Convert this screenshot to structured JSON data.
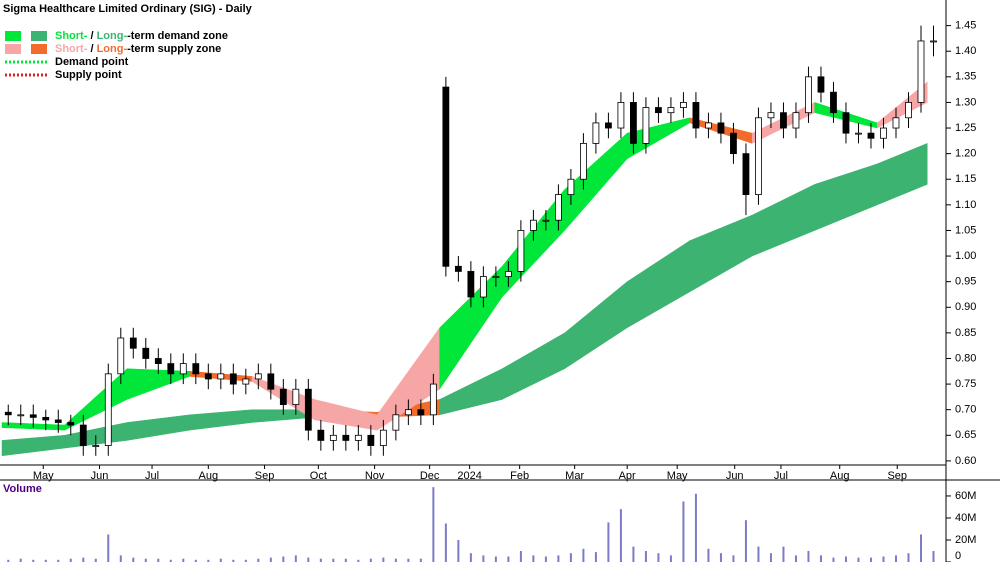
{
  "chart_data": {
    "type": "candlestick",
    "title": "Sigma Healthcare Limited Ordinary (SIG) - Daily",
    "legend": [
      {
        "parts": [
          "Short-",
          " / ",
          "Long-",
          "-term demand zone"
        ],
        "swatches": [
          "#00e639",
          "#3cb371"
        ]
      },
      {
        "parts": [
          "Short-",
          " / ",
          "Long-",
          "-term supply zone"
        ],
        "swatches": [
          "#f7a6a6",
          "#f26b2d"
        ]
      },
      {
        "text": "Demand point",
        "line": "#00e639"
      },
      {
        "text": "Supply point",
        "line": "#e02020"
      }
    ],
    "open": [
      0.695,
      0.69,
      0.69,
      0.685,
      0.68,
      0.675,
      0.67,
      0.63,
      0.63,
      0.77,
      0.84,
      0.82,
      0.8,
      0.79,
      0.77,
      0.79,
      0.77,
      0.76,
      0.77,
      0.75,
      0.76,
      0.77,
      0.74,
      0.71,
      0.74,
      0.66,
      0.64,
      0.65,
      0.64,
      0.65,
      0.63,
      0.66,
      0.69,
      0.7,
      0.69,
      1.33,
      0.98,
      0.97,
      0.92,
      0.96,
      0.96,
      0.97,
      1.05,
      1.07,
      1.07,
      1.12,
      1.15,
      1.22,
      1.26,
      1.25,
      1.3,
      1.22,
      1.29,
      1.28,
      1.29,
      1.3,
      1.25,
      1.26,
      1.24,
      1.2,
      1.12,
      1.27,
      1.28,
      1.25,
      1.28,
      1.35,
      1.32,
      1.28,
      1.24,
      1.24,
      1.23,
      1.25,
      1.27,
      1.3,
      1.42
    ],
    "high": [
      0.71,
      0.71,
      0.71,
      0.7,
      0.7,
      0.69,
      0.69,
      0.65,
      0.79,
      0.86,
      0.86,
      0.84,
      0.82,
      0.81,
      0.81,
      0.81,
      0.79,
      0.79,
      0.79,
      0.78,
      0.79,
      0.79,
      0.76,
      0.76,
      0.76,
      0.68,
      0.67,
      0.67,
      0.67,
      0.67,
      0.68,
      0.71,
      0.72,
      0.72,
      0.77,
      1.35,
      1.0,
      0.99,
      0.98,
      0.98,
      0.99,
      1.07,
      1.09,
      1.09,
      1.14,
      1.17,
      1.24,
      1.28,
      1.28,
      1.32,
      1.32,
      1.31,
      1.31,
      1.31,
      1.32,
      1.32,
      1.28,
      1.28,
      1.26,
      1.22,
      1.29,
      1.3,
      1.3,
      1.3,
      1.37,
      1.37,
      1.34,
      1.3,
      1.26,
      1.26,
      1.27,
      1.29,
      1.32,
      1.45,
      1.45
    ],
    "low": [
      0.67,
      0.67,
      0.665,
      0.66,
      0.655,
      0.65,
      0.61,
      0.61,
      0.61,
      0.75,
      0.8,
      0.78,
      0.77,
      0.75,
      0.75,
      0.75,
      0.74,
      0.74,
      0.73,
      0.73,
      0.74,
      0.72,
      0.69,
      0.69,
      0.64,
      0.62,
      0.62,
      0.62,
      0.62,
      0.61,
      0.61,
      0.64,
      0.67,
      0.67,
      0.67,
      0.96,
      0.95,
      0.9,
      0.9,
      0.94,
      0.94,
      0.95,
      1.03,
      1.05,
      1.05,
      1.1,
      1.13,
      1.2,
      1.23,
      1.23,
      1.2,
      1.2,
      1.26,
      1.26,
      1.27,
      1.23,
      1.23,
      1.22,
      1.18,
      1.08,
      1.1,
      1.25,
      1.23,
      1.23,
      1.26,
      1.3,
      1.26,
      1.22,
      1.22,
      1.21,
      1.21,
      1.23,
      1.25,
      1.28,
      1.39
    ],
    "close": [
      0.69,
      0.69,
      0.685,
      0.68,
      0.675,
      0.67,
      0.63,
      0.63,
      0.77,
      0.84,
      0.82,
      0.8,
      0.79,
      0.77,
      0.79,
      0.77,
      0.76,
      0.77,
      0.75,
      0.76,
      0.77,
      0.74,
      0.71,
      0.74,
      0.66,
      0.64,
      0.65,
      0.64,
      0.65,
      0.63,
      0.66,
      0.69,
      0.7,
      0.69,
      0.75,
      0.98,
      0.97,
      0.92,
      0.96,
      0.96,
      0.97,
      1.05,
      1.07,
      1.07,
      1.12,
      1.15,
      1.22,
      1.26,
      1.25,
      1.3,
      1.22,
      1.29,
      1.28,
      1.29,
      1.3,
      1.25,
      1.26,
      1.24,
      1.2,
      1.12,
      1.27,
      1.28,
      1.25,
      1.28,
      1.35,
      1.32,
      1.28,
      1.24,
      1.24,
      1.23,
      1.25,
      1.27,
      1.3,
      1.42,
      1.42
    ],
    "long_term_zone": {
      "x": [
        0,
        5,
        10,
        15,
        20,
        25,
        30,
        35,
        40,
        45,
        50,
        55,
        60,
        65,
        70,
        74
      ],
      "upper": [
        0.64,
        0.65,
        0.675,
        0.69,
        0.7,
        0.7,
        0.695,
        0.72,
        0.78,
        0.85,
        0.95,
        1.03,
        1.08,
        1.14,
        1.18,
        1.22
      ],
      "lower": [
        0.61,
        0.625,
        0.64,
        0.66,
        0.675,
        0.685,
        0.685,
        0.69,
        0.72,
        0.78,
        0.86,
        0.93,
        1.0,
        1.05,
        1.1,
        1.14
      ],
      "colors": [
        "#3cb371",
        "#3cb371",
        "#3cb371",
        "#3cb371",
        "#3cb371",
        "#f26b2d",
        "#f26b2d",
        "#3cb371",
        "#3cb371",
        "#3cb371",
        "#3cb371",
        "#3cb371",
        "#3cb371",
        "#3cb371",
        "#3cb371",
        "#3cb371"
      ]
    },
    "short_term_zone": {
      "x": [
        0,
        5,
        10,
        15,
        20,
        25,
        30,
        35,
        40,
        45,
        50,
        55,
        60,
        65,
        70,
        74
      ],
      "upper": [
        0.675,
        0.67,
        0.78,
        0.775,
        0.765,
        0.72,
        0.69,
        0.86,
        0.98,
        1.13,
        1.24,
        1.27,
        1.24,
        1.3,
        1.26,
        1.34
      ],
      "lower": [
        0.665,
        0.66,
        0.72,
        0.765,
        0.755,
        0.68,
        0.66,
        0.74,
        0.92,
        1.05,
        1.19,
        1.26,
        1.22,
        1.28,
        1.25,
        1.3
      ],
      "colors": [
        "#00e639",
        "#00e639",
        "#00e639",
        "#f26b2d",
        "#f7a6a6",
        "#f7a6a6",
        "#f7a6a6",
        "#00e639",
        "#00e639",
        "#00e639",
        "#00e639",
        "#f26b2d",
        "#f7a6a6",
        "#00e639",
        "#f7a6a6",
        "#00e639"
      ]
    },
    "xlim": [
      0,
      75.5
    ],
    "xticks": [
      {
        "value": 3.3,
        "label": "May"
      },
      {
        "value": 7.8,
        "label": "Jun"
      },
      {
        "value": 12,
        "label": "Jul"
      },
      {
        "value": 16.5,
        "label": "Aug"
      },
      {
        "value": 21,
        "label": "Sep"
      },
      {
        "value": 25.3,
        "label": "Oct"
      },
      {
        "value": 29.8,
        "label": "Nov"
      },
      {
        "value": 34.2,
        "label": "Dec"
      },
      {
        "value": 37.4,
        "label": "2024"
      },
      {
        "value": 41.4,
        "label": "Feb"
      },
      {
        "value": 45.8,
        "label": "Mar"
      },
      {
        "value": 50,
        "label": "Apr"
      },
      {
        "value": 54,
        "label": "May"
      },
      {
        "value": 58.6,
        "label": "Jun"
      },
      {
        "value": 62.3,
        "label": "Jul"
      },
      {
        "value": 67,
        "label": "Aug"
      },
      {
        "value": 71.6,
        "label": "Sep"
      }
    ],
    "ylim": [
      0.592,
      1.5
    ],
    "yticks": [
      {
        "value": 0.6,
        "label": "0.60"
      },
      0.65,
      {
        "value": 0.7,
        "label": "0.70"
      },
      0.75,
      {
        "value": 0.8,
        "label": "0.80"
      },
      0.85,
      {
        "value": 0.9,
        "label": "0.90"
      },
      0.95,
      {
        "value": 1.0,
        "label": "1.00"
      },
      1.05,
      {
        "value": 1.1,
        "label": "1.10"
      },
      1.15,
      {
        "value": 1.2,
        "label": "1.20"
      },
      1.25,
      {
        "value": 1.3,
        "label": "1.30"
      },
      1.35,
      {
        "value": 1.4,
        "label": "1.40"
      },
      1.45
    ],
    "volume": {
      "label": "Volume",
      "color": "#7b7bc8",
      "values": [
        2000000,
        3000000,
        2000000,
        2000000,
        2000000,
        3000000,
        4000000,
        3000000,
        25000000,
        6000000,
        4000000,
        3000000,
        3000000,
        2000000,
        3000000,
        2000000,
        2000000,
        3000000,
        2000000,
        2000000,
        3000000,
        4000000,
        5000000,
        6000000,
        4000000,
        3000000,
        3000000,
        3000000,
        2000000,
        3000000,
        4000000,
        3000000,
        3000000,
        3000000,
        68000000,
        35000000,
        20000000,
        8000000,
        6000000,
        5000000,
        5000000,
        10000000,
        6000000,
        5000000,
        6000000,
        8000000,
        12000000,
        9000000,
        36000000,
        48000000,
        14000000,
        10000000,
        8000000,
        6000000,
        55000000,
        62000000,
        12000000,
        8000000,
        6000000,
        38000000,
        14000000,
        8000000,
        14000000,
        6000000,
        10000000,
        6000000,
        4000000,
        5000000,
        4000000,
        4000000,
        5000000,
        6000000,
        8000000,
        25000000,
        10000000
      ],
      "ylim": [
        0,
        74500000
      ],
      "yticks": [
        0,
        {
          "value": 20000000,
          "label": "20M"
        },
        {
          "value": 40000000,
          "label": "40M"
        },
        {
          "value": 60000000,
          "label": "60M"
        }
      ]
    }
  }
}
